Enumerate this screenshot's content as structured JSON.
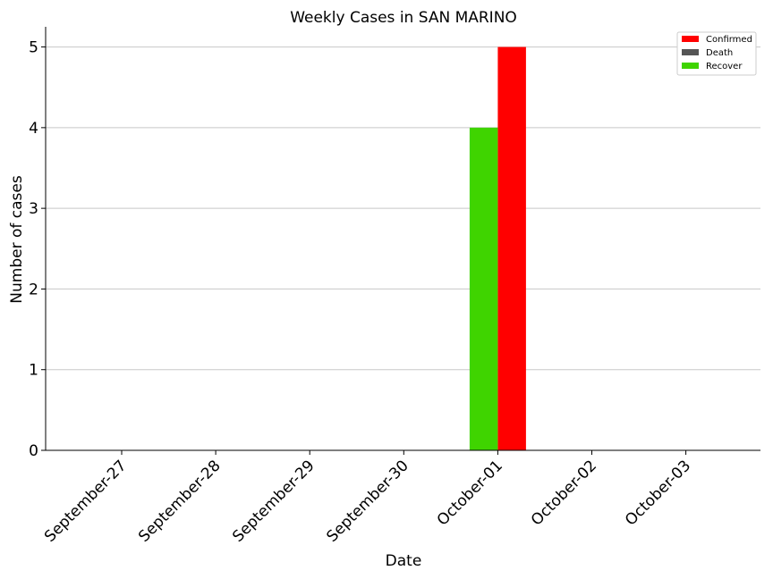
{
  "chart_data": {
    "type": "bar",
    "title": "Weekly Cases in SAN MARINO",
    "xlabel": "Date",
    "ylabel": "Number of cases",
    "categories": [
      "September-27",
      "September-28",
      "September-29",
      "September-30",
      "October-01",
      "October-02",
      "October-03"
    ],
    "series": [
      {
        "name": "Confirmed",
        "color": "#ff0000",
        "values": [
          0,
          0,
          0,
          0,
          5,
          0,
          0
        ]
      },
      {
        "name": "Death",
        "color": "#555555",
        "values": [
          0,
          0,
          0,
          0,
          0,
          0,
          0
        ]
      },
      {
        "name": "Recover",
        "color": "#3fd400",
        "values": [
          0,
          0,
          0,
          0,
          4,
          0,
          0
        ]
      }
    ],
    "ylim": [
      0,
      5.25
    ],
    "yticks": [
      0,
      1,
      2,
      3,
      4,
      5
    ],
    "grid": "horizontal",
    "legend": "top-right"
  }
}
